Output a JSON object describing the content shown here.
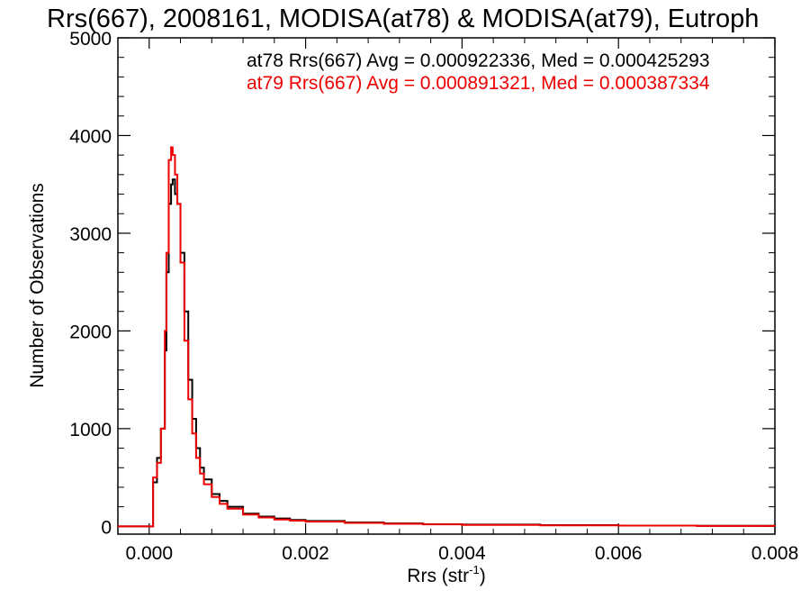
{
  "chart_data": {
    "type": "line",
    "title": "Rrs(667), 2008161, MODISA(at78) & MODISA(at79), Eutroph",
    "xlabel": "Rrs (str",
    "xlabel_sup": "-1",
    "xlabel_close": ")",
    "ylabel": "Number of Observations",
    "xlim": [
      -0.0004,
      0.008
    ],
    "ylim": [
      -80,
      5000
    ],
    "x_ticks": [
      0.0,
      0.002,
      0.004,
      0.006,
      0.008
    ],
    "x_tick_labels": [
      "0.000",
      "0.002",
      "0.004",
      "0.006",
      "0.008"
    ],
    "y_ticks": [
      0,
      1000,
      2000,
      3000,
      4000,
      5000
    ],
    "y_tick_labels": [
      "0",
      "1000",
      "2000",
      "3000",
      "4000",
      "5000"
    ],
    "annotations": [
      {
        "text": "at78 Rrs(667) Avg = 0.000922336, Med = 0.000425293",
        "color": "#000000"
      },
      {
        "text": "at79 Rrs(667) Avg = 0.000891321, Med = 0.000387334",
        "color": "#ee0000"
      }
    ],
    "series": [
      {
        "color": "#000000",
        "x": [
          -0.0004,
          -0.0001,
          2e-05,
          5e-05,
          0.0001,
          0.00015,
          0.0002,
          0.00022,
          0.00025,
          0.00028,
          0.0003,
          0.00033,
          0.00036,
          0.0004,
          0.00045,
          0.0005,
          0.00055,
          0.0006,
          0.00065,
          0.0007,
          0.0008,
          0.0009,
          0.001,
          0.0012,
          0.0014,
          0.0016,
          0.0018,
          0.002,
          0.0025,
          0.003,
          0.0035,
          0.004,
          0.005,
          0.006,
          0.007,
          0.008
        ],
        "y": [
          0,
          0,
          0,
          450,
          700,
          1000,
          1800,
          2600,
          3300,
          3500,
          3550,
          3400,
          3300,
          2800,
          2200,
          1500,
          1100,
          800,
          600,
          480,
          330,
          260,
          200,
          130,
          100,
          80,
          65,
          55,
          40,
          30,
          22,
          18,
          12,
          8,
          5,
          3
        ]
      },
      {
        "color": "#ee0000",
        "x": [
          -0.0004,
          -0.0001,
          2e-05,
          5e-05,
          0.0001,
          0.00015,
          0.0002,
          0.00022,
          0.00025,
          0.00028,
          0.0003,
          0.00033,
          0.00036,
          0.0004,
          0.00045,
          0.0005,
          0.00055,
          0.0006,
          0.00065,
          0.0007,
          0.0008,
          0.0009,
          0.001,
          0.0012,
          0.0014,
          0.0016,
          0.0018,
          0.002,
          0.0025,
          0.003,
          0.0035,
          0.004,
          0.005,
          0.006,
          0.007,
          0.008
        ],
        "y": [
          0,
          0,
          0,
          500,
          650,
          1000,
          2000,
          2800,
          3750,
          3880,
          3800,
          3600,
          3300,
          2700,
          1900,
          1300,
          950,
          700,
          540,
          430,
          300,
          230,
          180,
          120,
          90,
          70,
          58,
          48,
          35,
          26,
          20,
          15,
          10,
          7,
          4,
          2
        ]
      }
    ]
  }
}
